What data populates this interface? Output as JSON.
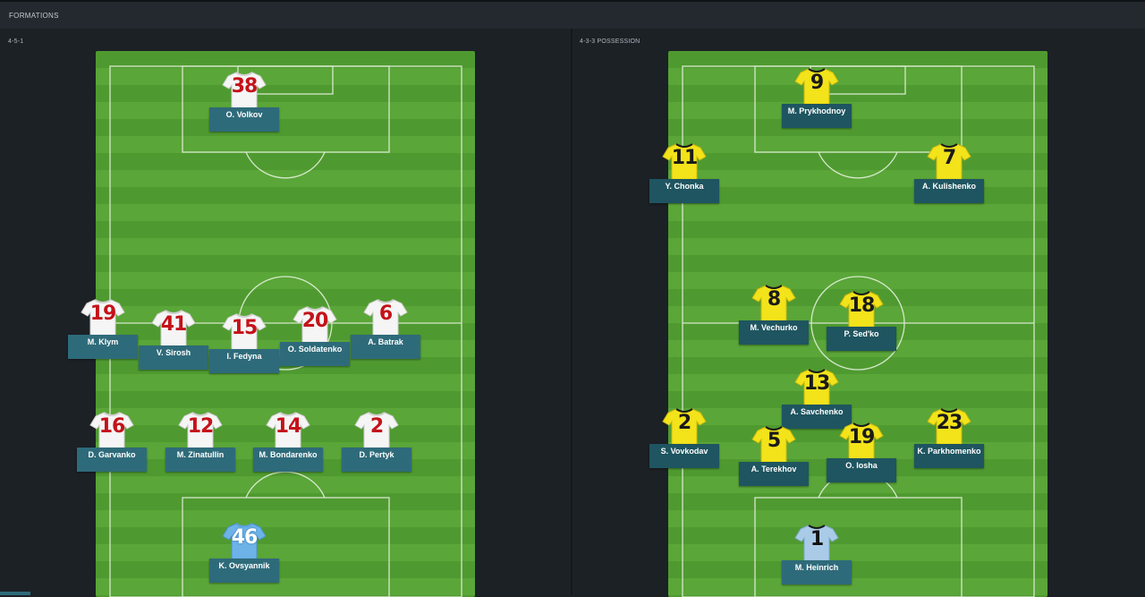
{
  "header": {
    "title": "FORMATIONS"
  },
  "left": {
    "label": "4-5-1",
    "players": [
      {
        "num": "38",
        "name": "O. Volkov",
        "kit": "red"
      },
      {
        "num": "19",
        "name": "M. Klym",
        "kit": "red"
      },
      {
        "num": "41",
        "name": "V. Sirosh",
        "kit": "red"
      },
      {
        "num": "15",
        "name": "I. Fedyna",
        "kit": "red"
      },
      {
        "num": "20",
        "name": "O. Soldatenko",
        "kit": "red"
      },
      {
        "num": "6",
        "name": "A. Batrak",
        "kit": "red"
      },
      {
        "num": "16",
        "name": "D. Garvanko",
        "kit": "red"
      },
      {
        "num": "12",
        "name": "M. Zinatullin",
        "kit": "red"
      },
      {
        "num": "14",
        "name": "M. Bondarenko",
        "kit": "red"
      },
      {
        "num": "2",
        "name": "D. Pertyk",
        "kit": "red"
      },
      {
        "num": "46",
        "name": "K. Ovsyannik",
        "kit": "gk"
      }
    ]
  },
  "right": {
    "label": "4-3-3 POSSESSION",
    "players": [
      {
        "num": "9",
        "name": "M. Prykhodnoy",
        "kit": "yellow"
      },
      {
        "num": "11",
        "name": "Y. Chonka",
        "kit": "yellow"
      },
      {
        "num": "7",
        "name": "A. Kulishenko",
        "kit": "yellow"
      },
      {
        "num": "8",
        "name": "M. Vechurko",
        "kit": "yellow"
      },
      {
        "num": "18",
        "name": "P. Sed'ko",
        "kit": "yellow"
      },
      {
        "num": "13",
        "name": "A. Savchenko",
        "kit": "yellow"
      },
      {
        "num": "2",
        "name": "S. Vovkodav",
        "kit": "yellow"
      },
      {
        "num": "5",
        "name": "A. Terekhov",
        "kit": "yellow"
      },
      {
        "num": "19",
        "name": "O. Iosha",
        "kit": "yellow"
      },
      {
        "num": "23",
        "name": "K. Parkhomenko",
        "kit": "yellow"
      },
      {
        "num": "1",
        "name": "M. Heinrich",
        "kit": "gk2"
      }
    ]
  },
  "colors": {
    "red_kit_shirt": "#f4f4f4",
    "red_kit_number": "#c4121a",
    "yellow_kit_shirt": "#f2e21a",
    "gk_shirt": "#6db3e8",
    "gk2_shirt": "#a7c9e6",
    "name_plate": "#2e6b7a",
    "pitch": "#4f9a30"
  }
}
